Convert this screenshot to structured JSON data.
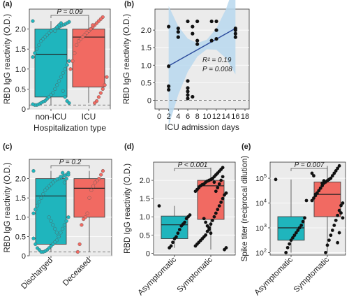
{
  "colors": {
    "teal": "#1fb5bd",
    "red": "#f16a62",
    "blue": "#2b4a9c",
    "ci": "#b9d8ee",
    "panel_bg": "#ebebeb",
    "grid": "#ffffff"
  },
  "chart_data": [
    {
      "panel_label": "(a)",
      "type": "box+strip",
      "ylabel": "RBD IgG reactivity (O.D.)",
      "xlabel": "Hospitalization type",
      "categories": [
        "non-ICU",
        "ICU"
      ],
      "ylim": [
        0,
        2.5
      ],
      "yticks": [
        "0",
        "0.5",
        "1.0",
        "1.5",
        "2.0"
      ],
      "annotation": "P = 0.09",
      "boxes": [
        {
          "q1": 0.3,
          "median": 1.37,
          "q3": 2.0,
          "whisker_low": 0.1,
          "whisker_high": 2.2
        },
        {
          "q1": 0.55,
          "median": 1.8,
          "q3": 2.0,
          "whisker_low": 0.15,
          "whisker_high": 2.3
        }
      ],
      "points": [
        [
          2.2,
          2.18,
          2.15,
          2.12,
          2.1,
          2.08,
          2.05,
          2.02,
          2.0,
          1.98,
          1.95,
          1.9,
          1.85,
          1.8,
          1.75,
          1.7,
          1.6,
          1.5,
          1.4,
          1.3,
          1.2,
          1.1,
          1.0,
          0.9,
          0.8,
          0.7,
          0.6,
          0.5,
          0.4,
          0.35,
          0.3,
          0.25,
          0.2,
          0.18,
          0.15,
          0.12,
          0.1,
          0.1,
          0.12,
          0.15,
          0.2,
          0.3,
          0.45,
          2.15,
          2.1,
          2.05,
          1.95
        ],
        [
          2.3,
          2.25,
          2.2,
          2.15,
          2.1,
          2.05,
          2.0,
          1.95,
          1.9,
          1.85,
          1.8,
          1.75,
          1.7,
          1.6,
          1.4,
          1.2,
          1.0,
          0.8,
          0.6,
          0.5,
          0.4,
          0.3,
          0.2,
          0.15,
          2.1,
          2.0
        ]
      ],
      "dashed_line": 0.1
    },
    {
      "panel_label": "(b)",
      "type": "scatter",
      "ylabel": "RBD IgG reactivity (O.D.)",
      "xlabel": "ICU admission days",
      "xlim": [
        0,
        18
      ],
      "xticks": [
        "0",
        "2",
        "4",
        "6",
        "8",
        "10",
        "12",
        "14",
        "16",
        "18"
      ],
      "ylim": [
        -0.25,
        2.6
      ],
      "yticks": [
        "0",
        "0.5",
        "1.0",
        "1.5",
        "2.0"
      ],
      "r2_text": "R² = 0.19",
      "p_text": "P = 0.008",
      "fit": {
        "x0": 2,
        "y0": 0.98,
        "x1": 16,
        "y1": 2.05
      },
      "points": [
        [
          2,
          0.3
        ],
        [
          2,
          0.4
        ],
        [
          2,
          0.97
        ],
        [
          2,
          2.1
        ],
        [
          4,
          2.05
        ],
        [
          4,
          1.95
        ],
        [
          4,
          1.8
        ],
        [
          6,
          0.05
        ],
        [
          6,
          0.15
        ],
        [
          6,
          0.25
        ],
        [
          6,
          0.35
        ],
        [
          6,
          0.55
        ],
        [
          6,
          2.25
        ],
        [
          7,
          0.1
        ],
        [
          7,
          2.1
        ],
        [
          7,
          1.9
        ],
        [
          8,
          2.25
        ],
        [
          8,
          1.7
        ],
        [
          8,
          1.6
        ],
        [
          11,
          2.25
        ],
        [
          11,
          1.7
        ],
        [
          12,
          1.75
        ],
        [
          12,
          2.0
        ],
        [
          12,
          2.25
        ],
        [
          16,
          2.05
        ],
        [
          16,
          2.0
        ],
        [
          16,
          1.9
        ],
        [
          16,
          1.8
        ]
      ]
    },
    {
      "panel_label": "(c)",
      "type": "box+strip",
      "ylabel": "RBD IgG reactivity (O.D.)",
      "categories": [
        "Discharged",
        "Deceased"
      ],
      "ylim": [
        0,
        2.5
      ],
      "yticks": [
        "0",
        "0.5",
        "1.0",
        "1.5",
        "2.0"
      ],
      "annotation": "P = 0.2",
      "boxes": [
        {
          "q1": 0.3,
          "median": 1.55,
          "q3": 2.0,
          "whisker_low": 0.1,
          "whisker_high": 2.2
        },
        {
          "q1": 1.0,
          "median": 1.75,
          "q3": 2.0,
          "whisker_low": 0.1,
          "whisker_high": 2.2
        }
      ],
      "points": [
        [
          2.2,
          2.15,
          2.1,
          2.08,
          2.05,
          2.02,
          2.0,
          1.98,
          1.95,
          1.9,
          1.85,
          1.8,
          1.75,
          1.7,
          1.6,
          1.5,
          1.4,
          1.3,
          1.2,
          1.1,
          1.0,
          0.9,
          0.8,
          0.7,
          0.6,
          0.5,
          0.4,
          0.35,
          0.3,
          0.25,
          0.2,
          0.15,
          0.12,
          0.1,
          0.1,
          0.15,
          0.2,
          0.3,
          0.45,
          2.1,
          2.0,
          1.9,
          2.15,
          2.05,
          0.5,
          0.6,
          0.7,
          0.8,
          0.9,
          1.0
        ],
        [
          2.2,
          2.1,
          2.0,
          1.95,
          1.9,
          1.8,
          1.7,
          1.5,
          1.1,
          1.0,
          0.95,
          0.8,
          0.3,
          0.1
        ]
      ],
      "dashed_line": 0.1
    },
    {
      "panel_label": "(d)",
      "type": "box+strip",
      "ylabel": "RBD IgG reactivity (O.D.)",
      "categories": [
        "Asymptomatic",
        "Symptomatic"
      ],
      "ylim": [
        -0.05,
        2.5
      ],
      "yticks": [
        "0",
        "0.5",
        "1.0",
        "1.5",
        "2.0"
      ],
      "annotation": "P < 0.001",
      "boxes": [
        {
          "q1": 0.4,
          "median": 0.78,
          "q3": 1.02,
          "whisker_low": 0.15,
          "whisker_high": 1.3
        },
        {
          "q1": 0.93,
          "median": 1.85,
          "q3": 2.0,
          "whisker_low": 0.1,
          "whisker_high": 2.35
        }
      ],
      "points": [
        [
          1.3,
          1.05,
          1.0,
          0.95,
          0.85,
          0.8,
          0.75,
          0.65,
          0.55,
          0.45,
          0.4,
          0.3,
          0.2,
          0.15
        ],
        [
          2.35,
          2.3,
          2.25,
          2.2,
          2.15,
          2.1,
          2.05,
          2.02,
          2.0,
          1.98,
          1.95,
          1.9,
          1.88,
          1.85,
          1.8,
          1.75,
          1.7,
          1.65,
          1.6,
          1.5,
          1.4,
          1.3,
          1.2,
          1.1,
          1.0,
          0.9,
          0.8,
          0.7,
          0.6,
          0.5,
          0.45,
          0.4,
          0.35,
          0.3,
          0.25,
          0.2,
          0.15,
          0.1,
          2.1,
          2.0,
          1.9,
          1.8,
          1.7,
          1.95,
          2.05,
          0.55,
          0.65,
          0.75,
          0.85,
          0.95
        ]
      ]
    },
    {
      "panel_label": "(e)",
      "type": "box+strip",
      "scale": "log",
      "ylabel": "Spike titer (reciprocal dilution)",
      "categories": [
        "Asymptomatic",
        "Symptomatic"
      ],
      "ylim_log10": [
        1.9,
        5.65
      ],
      "yticks": [
        {
          "base": "10",
          "exp": "2"
        },
        {
          "base": "10",
          "exp": "3"
        },
        {
          "base": "10",
          "exp": "4"
        },
        {
          "base": "10",
          "exp": "5"
        }
      ],
      "annotation": "P = 0.007",
      "boxes": [
        {
          "q1": 2.5,
          "median": 3.0,
          "q3": 3.45,
          "whisker_low": 2.0,
          "whisker_high": 4.95
        },
        {
          "q1": 3.45,
          "median": 4.35,
          "q3": 4.85,
          "whisker_low": 2.0,
          "whisker_high": 5.5
        }
      ],
      "points": [
        [
          4.95,
          4.1,
          3.4,
          3.25,
          3.1,
          3.0,
          2.9,
          2.8,
          2.7,
          2.6,
          2.5,
          2.35,
          2.2,
          2.0
        ],
        [
          5.5,
          5.4,
          5.3,
          5.2,
          5.1,
          5.0,
          4.95,
          4.9,
          4.85,
          4.8,
          4.7,
          4.6,
          4.5,
          4.4,
          4.3,
          4.2,
          4.1,
          4.0,
          3.9,
          3.7,
          3.5,
          3.3,
          3.1,
          2.9,
          2.7,
          2.5,
          2.3,
          2.0,
          4.9,
          4.8,
          4.6,
          4.5,
          4.4,
          4.35,
          5.1,
          5.2,
          3.4,
          3.6,
          2.8,
          2.4
        ]
      ]
    }
  ]
}
